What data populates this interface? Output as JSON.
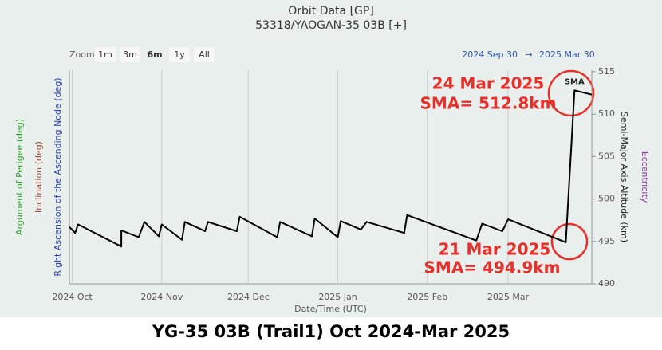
{
  "chart_data": {
    "type": "line",
    "title": "Orbit Data [GP]",
    "subtitle": "53318/YAOGAN-35 03B [+]",
    "range_selector": {
      "label": "Zoom",
      "buttons": [
        "1m",
        "3m",
        "6m",
        "1y",
        "All"
      ],
      "selected": "6m",
      "from": "2024 Sep 30",
      "arrow": "→",
      "to": "2025 Mar 30"
    },
    "x_label": "Date/Time (UTC)",
    "axis_titles": [
      {
        "text": "Argument of Perigee (deg)",
        "color": "#2e9a2e",
        "side": "left"
      },
      {
        "text": "Inclination (deg)",
        "color": "#9a4a3a",
        "side": "left"
      },
      {
        "text": "Right Ascension of the Ascending Node (deg)",
        "color": "#2b3fae",
        "side": "left"
      },
      {
        "text": "Semi-Major Axis Altitude (km)",
        "color": "#222222",
        "side": "right"
      },
      {
        "text": "Eccentricity",
        "color": "#8a2ea0",
        "side": "right"
      }
    ],
    "x": [
      "2024-09-30",
      "2024-10-02",
      "2024-10-03",
      "2024-10-18",
      "2024-10-18",
      "2024-10-24",
      "2024-10-26",
      "2024-10-31",
      "2024-11-01",
      "2024-11-08",
      "2024-11-09",
      "2024-11-16",
      "2024-11-17",
      "2024-11-27",
      "2024-11-28",
      "2024-12-11",
      "2024-12-12",
      "2024-12-23",
      "2024-12-24",
      "2025-01-01",
      "2025-01-02",
      "2025-01-09",
      "2025-01-11",
      "2025-01-24",
      "2025-01-25",
      "2025-02-18",
      "2025-02-20",
      "2025-02-27",
      "2025-03-01",
      "2025-03-21",
      "2025-03-24",
      "2025-03-30"
    ],
    "series": [
      {
        "name": "SMA",
        "color": "#000000",
        "values": [
          496.7,
          496.0,
          497.0,
          494.4,
          496.3,
          495.5,
          497.3,
          495.6,
          497.0,
          495.2,
          497.3,
          496.2,
          497.3,
          496.2,
          497.9,
          495.5,
          497.3,
          495.6,
          497.7,
          495.5,
          497.4,
          496.4,
          497.3,
          496.0,
          498.1,
          495.1,
          497.1,
          496.2,
          497.6,
          494.9,
          512.8,
          512.3
        ]
      }
    ],
    "xlim": [
      "2024-09-30",
      "2025-03-30"
    ],
    "xticks": [
      {
        "value": "2024-10-01",
        "label": "2024 Oct"
      },
      {
        "value": "2024-11-01",
        "label": "2024 Nov"
      },
      {
        "value": "2024-12-01",
        "label": "2024 Dec"
      },
      {
        "value": "2025-01-01",
        "label": "2025 Jan"
      },
      {
        "value": "2025-02-01",
        "label": "2025 Feb"
      },
      {
        "value": "2025-03-01",
        "label": "2025 Mar"
      }
    ],
    "ylim": [
      490,
      515
    ],
    "yticks": [
      490,
      495,
      500,
      505,
      510,
      515
    ],
    "grid": true,
    "annotations": [
      "24 Mar 2025",
      "SMA= 512.8km",
      "21 Mar 2025",
      "SMA= 494.9km"
    ],
    "caption": "YG-35 03B (Trail1) Oct 2024-Mar 2025"
  }
}
